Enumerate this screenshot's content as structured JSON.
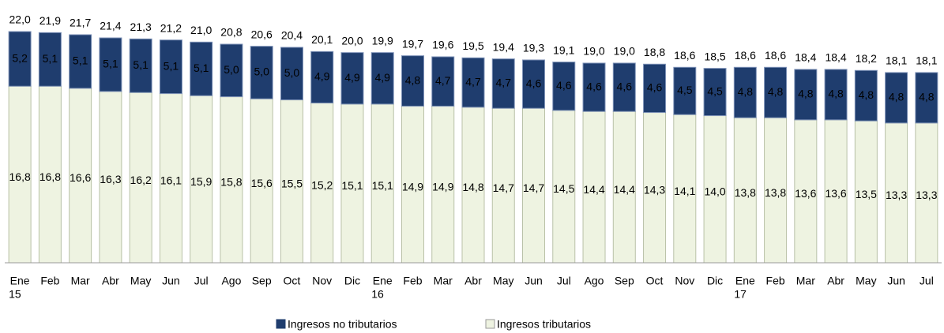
{
  "chart_data": {
    "type": "stacked_bar",
    "categories": [
      "Ene",
      "Feb",
      "Mar",
      "Abr",
      "May",
      "Jun",
      "Jul",
      "Ago",
      "Sep",
      "Oct",
      "Nov",
      "Dic",
      "Ene",
      "Feb",
      "Mar",
      "Abr",
      "May",
      "Jun",
      "Jul",
      "Ago",
      "Sep",
      "Oct",
      "Nov",
      "Dic",
      "Ene",
      "Feb",
      "Mar",
      "Abr",
      "May",
      "Jun",
      "Jul"
    ],
    "category_years": [
      "15",
      null,
      null,
      null,
      null,
      null,
      null,
      null,
      null,
      null,
      null,
      null,
      "16",
      null,
      null,
      null,
      null,
      null,
      null,
      null,
      null,
      null,
      null,
      null,
      "17",
      null,
      null,
      null,
      null,
      null,
      null
    ],
    "series": [
      {
        "name": "Ingresos no tributarios",
        "color": "#1f3d6e",
        "values": [
          5.2,
          5.1,
          5.1,
          5.1,
          5.1,
          5.1,
          5.1,
          5.0,
          5.0,
          5.0,
          4.9,
          4.9,
          4.9,
          4.8,
          4.7,
          4.7,
          4.7,
          4.6,
          4.6,
          4.6,
          4.6,
          4.6,
          4.5,
          4.5,
          4.8,
          4.8,
          4.8,
          4.8,
          4.8,
          4.8,
          4.8
        ],
        "value_labels": [
          "5,2",
          "5,1",
          "5,1",
          "5,1",
          "5,1",
          "5,1",
          "5,1",
          "5,0",
          "5,0",
          "5,0",
          "4,9",
          "4,9",
          "4,9",
          "4,8",
          "4,7",
          "4,7",
          "4,7",
          "4,6",
          "4,6",
          "4,6",
          "4,6",
          "4,6",
          "4,5",
          "4,5",
          "4,8",
          "4,8",
          "4,8",
          "4,8",
          "4,8",
          "4,8",
          "4,8"
        ]
      },
      {
        "name": "Ingresos tributarios",
        "color": "#eef3e1",
        "values": [
          16.8,
          16.8,
          16.6,
          16.3,
          16.2,
          16.1,
          15.9,
          15.8,
          15.6,
          15.5,
          15.2,
          15.1,
          15.1,
          14.9,
          14.9,
          14.8,
          14.7,
          14.7,
          14.5,
          14.4,
          14.4,
          14.3,
          14.1,
          14.0,
          13.8,
          13.8,
          13.6,
          13.6,
          13.5,
          13.3,
          13.3
        ],
        "value_labels": [
          "16,8",
          "16,8",
          "16,6",
          "16,3",
          "16,2",
          "16,1",
          "15,9",
          "15,8",
          "15,6",
          "15,5",
          "15,2",
          "15,1",
          "15,1",
          "14,9",
          "14,9",
          "14,8",
          "14,7",
          "14,7",
          "14,5",
          "14,4",
          "14,4",
          "14,3",
          "14,1",
          "14,0",
          "13,8",
          "13,8",
          "13,6",
          "13,6",
          "13,5",
          "13,3",
          "13,3"
        ]
      }
    ],
    "totals": [
      22.0,
      21.9,
      21.7,
      21.4,
      21.3,
      21.2,
      21.0,
      20.8,
      20.6,
      20.4,
      20.1,
      20.0,
      19.9,
      19.7,
      19.6,
      19.5,
      19.4,
      19.3,
      19.1,
      19.0,
      19.0,
      18.8,
      18.6,
      18.5,
      18.6,
      18.6,
      18.4,
      18.4,
      18.2,
      18.1,
      18.1
    ],
    "total_labels": [
      "22,0",
      "21,9",
      "21,7",
      "21,4",
      "21,3",
      "21,2",
      "21,0",
      "20,8",
      "20,6",
      "20,4",
      "20,1",
      "20,0",
      "19,9",
      "19,7",
      "19,6",
      "19,5",
      "19,4",
      "19,3",
      "19,1",
      "19,0",
      "19,0",
      "18,8",
      "18,6",
      "18,5",
      "18,6",
      "18,6",
      "18,4",
      "18,4",
      "18,2",
      "18,1",
      "18,1"
    ]
  }
}
